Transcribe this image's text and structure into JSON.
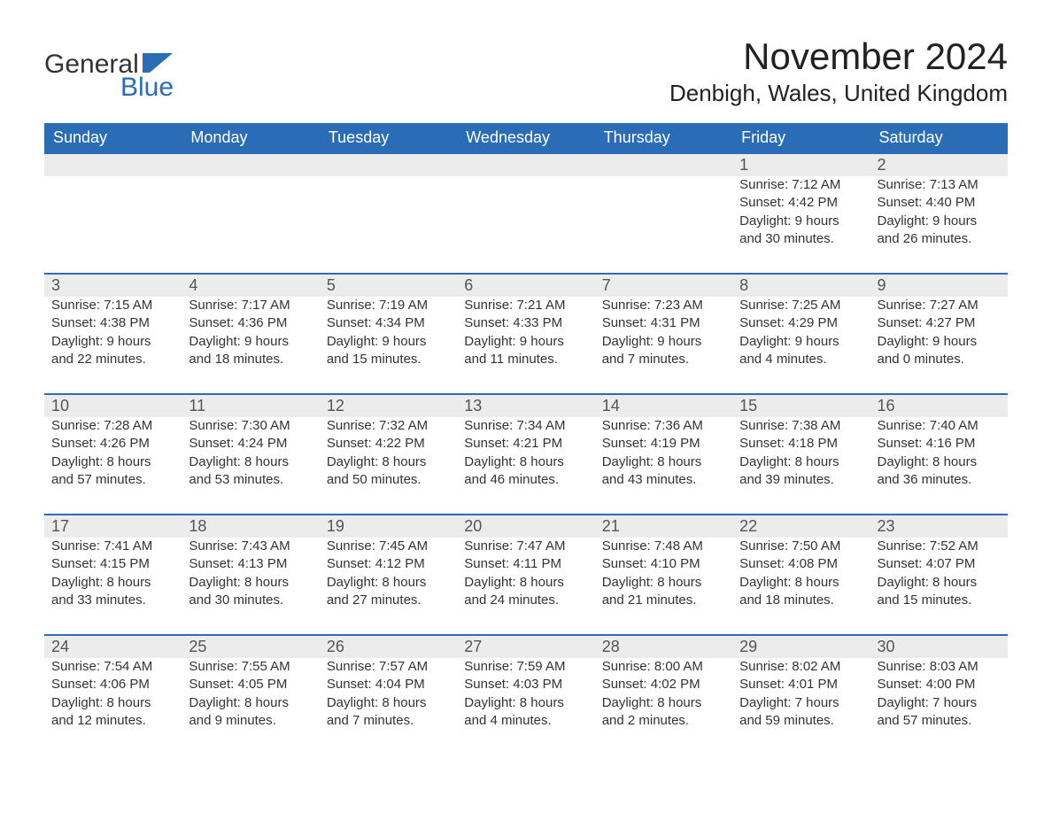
{
  "logo": {
    "text_general": "General",
    "text_blue": "Blue",
    "shape_color": "#2a6db6"
  },
  "title": "November 2024",
  "location": "Denbigh, Wales, United Kingdom",
  "colors": {
    "header_bg": "#2a6db6",
    "header_text": "#ffffff",
    "daynum_bg": "#ececec",
    "daynum_border": "#2a6db6",
    "body_text": "#333333",
    "page_bg": "#ffffff"
  },
  "day_headers": [
    "Sunday",
    "Monday",
    "Tuesday",
    "Wednesday",
    "Thursday",
    "Friday",
    "Saturday"
  ],
  "weeks": [
    [
      {
        "day": "",
        "sunrise": "",
        "sunset": "",
        "daylight1": "",
        "daylight2": ""
      },
      {
        "day": "",
        "sunrise": "",
        "sunset": "",
        "daylight1": "",
        "daylight2": ""
      },
      {
        "day": "",
        "sunrise": "",
        "sunset": "",
        "daylight1": "",
        "daylight2": ""
      },
      {
        "day": "",
        "sunrise": "",
        "sunset": "",
        "daylight1": "",
        "daylight2": ""
      },
      {
        "day": "",
        "sunrise": "",
        "sunset": "",
        "daylight1": "",
        "daylight2": ""
      },
      {
        "day": "1",
        "sunrise": "Sunrise: 7:12 AM",
        "sunset": "Sunset: 4:42 PM",
        "daylight1": "Daylight: 9 hours",
        "daylight2": "and 30 minutes."
      },
      {
        "day": "2",
        "sunrise": "Sunrise: 7:13 AM",
        "sunset": "Sunset: 4:40 PM",
        "daylight1": "Daylight: 9 hours",
        "daylight2": "and 26 minutes."
      }
    ],
    [
      {
        "day": "3",
        "sunrise": "Sunrise: 7:15 AM",
        "sunset": "Sunset: 4:38 PM",
        "daylight1": "Daylight: 9 hours",
        "daylight2": "and 22 minutes."
      },
      {
        "day": "4",
        "sunrise": "Sunrise: 7:17 AM",
        "sunset": "Sunset: 4:36 PM",
        "daylight1": "Daylight: 9 hours",
        "daylight2": "and 18 minutes."
      },
      {
        "day": "5",
        "sunrise": "Sunrise: 7:19 AM",
        "sunset": "Sunset: 4:34 PM",
        "daylight1": "Daylight: 9 hours",
        "daylight2": "and 15 minutes."
      },
      {
        "day": "6",
        "sunrise": "Sunrise: 7:21 AM",
        "sunset": "Sunset: 4:33 PM",
        "daylight1": "Daylight: 9 hours",
        "daylight2": "and 11 minutes."
      },
      {
        "day": "7",
        "sunrise": "Sunrise: 7:23 AM",
        "sunset": "Sunset: 4:31 PM",
        "daylight1": "Daylight: 9 hours",
        "daylight2": "and 7 minutes."
      },
      {
        "day": "8",
        "sunrise": "Sunrise: 7:25 AM",
        "sunset": "Sunset: 4:29 PM",
        "daylight1": "Daylight: 9 hours",
        "daylight2": "and 4 minutes."
      },
      {
        "day": "9",
        "sunrise": "Sunrise: 7:27 AM",
        "sunset": "Sunset: 4:27 PM",
        "daylight1": "Daylight: 9 hours",
        "daylight2": "and 0 minutes."
      }
    ],
    [
      {
        "day": "10",
        "sunrise": "Sunrise: 7:28 AM",
        "sunset": "Sunset: 4:26 PM",
        "daylight1": "Daylight: 8 hours",
        "daylight2": "and 57 minutes."
      },
      {
        "day": "11",
        "sunrise": "Sunrise: 7:30 AM",
        "sunset": "Sunset: 4:24 PM",
        "daylight1": "Daylight: 8 hours",
        "daylight2": "and 53 minutes."
      },
      {
        "day": "12",
        "sunrise": "Sunrise: 7:32 AM",
        "sunset": "Sunset: 4:22 PM",
        "daylight1": "Daylight: 8 hours",
        "daylight2": "and 50 minutes."
      },
      {
        "day": "13",
        "sunrise": "Sunrise: 7:34 AM",
        "sunset": "Sunset: 4:21 PM",
        "daylight1": "Daylight: 8 hours",
        "daylight2": "and 46 minutes."
      },
      {
        "day": "14",
        "sunrise": "Sunrise: 7:36 AM",
        "sunset": "Sunset: 4:19 PM",
        "daylight1": "Daylight: 8 hours",
        "daylight2": "and 43 minutes."
      },
      {
        "day": "15",
        "sunrise": "Sunrise: 7:38 AM",
        "sunset": "Sunset: 4:18 PM",
        "daylight1": "Daylight: 8 hours",
        "daylight2": "and 39 minutes."
      },
      {
        "day": "16",
        "sunrise": "Sunrise: 7:40 AM",
        "sunset": "Sunset: 4:16 PM",
        "daylight1": "Daylight: 8 hours",
        "daylight2": "and 36 minutes."
      }
    ],
    [
      {
        "day": "17",
        "sunrise": "Sunrise: 7:41 AM",
        "sunset": "Sunset: 4:15 PM",
        "daylight1": "Daylight: 8 hours",
        "daylight2": "and 33 minutes."
      },
      {
        "day": "18",
        "sunrise": "Sunrise: 7:43 AM",
        "sunset": "Sunset: 4:13 PM",
        "daylight1": "Daylight: 8 hours",
        "daylight2": "and 30 minutes."
      },
      {
        "day": "19",
        "sunrise": "Sunrise: 7:45 AM",
        "sunset": "Sunset: 4:12 PM",
        "daylight1": "Daylight: 8 hours",
        "daylight2": "and 27 minutes."
      },
      {
        "day": "20",
        "sunrise": "Sunrise: 7:47 AM",
        "sunset": "Sunset: 4:11 PM",
        "daylight1": "Daylight: 8 hours",
        "daylight2": "and 24 minutes."
      },
      {
        "day": "21",
        "sunrise": "Sunrise: 7:48 AM",
        "sunset": "Sunset: 4:10 PM",
        "daylight1": "Daylight: 8 hours",
        "daylight2": "and 21 minutes."
      },
      {
        "day": "22",
        "sunrise": "Sunrise: 7:50 AM",
        "sunset": "Sunset: 4:08 PM",
        "daylight1": "Daylight: 8 hours",
        "daylight2": "and 18 minutes."
      },
      {
        "day": "23",
        "sunrise": "Sunrise: 7:52 AM",
        "sunset": "Sunset: 4:07 PM",
        "daylight1": "Daylight: 8 hours",
        "daylight2": "and 15 minutes."
      }
    ],
    [
      {
        "day": "24",
        "sunrise": "Sunrise: 7:54 AM",
        "sunset": "Sunset: 4:06 PM",
        "daylight1": "Daylight: 8 hours",
        "daylight2": "and 12 minutes."
      },
      {
        "day": "25",
        "sunrise": "Sunrise: 7:55 AM",
        "sunset": "Sunset: 4:05 PM",
        "daylight1": "Daylight: 8 hours",
        "daylight2": "and 9 minutes."
      },
      {
        "day": "26",
        "sunrise": "Sunrise: 7:57 AM",
        "sunset": "Sunset: 4:04 PM",
        "daylight1": "Daylight: 8 hours",
        "daylight2": "and 7 minutes."
      },
      {
        "day": "27",
        "sunrise": "Sunrise: 7:59 AM",
        "sunset": "Sunset: 4:03 PM",
        "daylight1": "Daylight: 8 hours",
        "daylight2": "and 4 minutes."
      },
      {
        "day": "28",
        "sunrise": "Sunrise: 8:00 AM",
        "sunset": "Sunset: 4:02 PM",
        "daylight1": "Daylight: 8 hours",
        "daylight2": "and 2 minutes."
      },
      {
        "day": "29",
        "sunrise": "Sunrise: 8:02 AM",
        "sunset": "Sunset: 4:01 PM",
        "daylight1": "Daylight: 7 hours",
        "daylight2": "and 59 minutes."
      },
      {
        "day": "30",
        "sunrise": "Sunrise: 8:03 AM",
        "sunset": "Sunset: 4:00 PM",
        "daylight1": "Daylight: 7 hours",
        "daylight2": "and 57 minutes."
      }
    ]
  ]
}
